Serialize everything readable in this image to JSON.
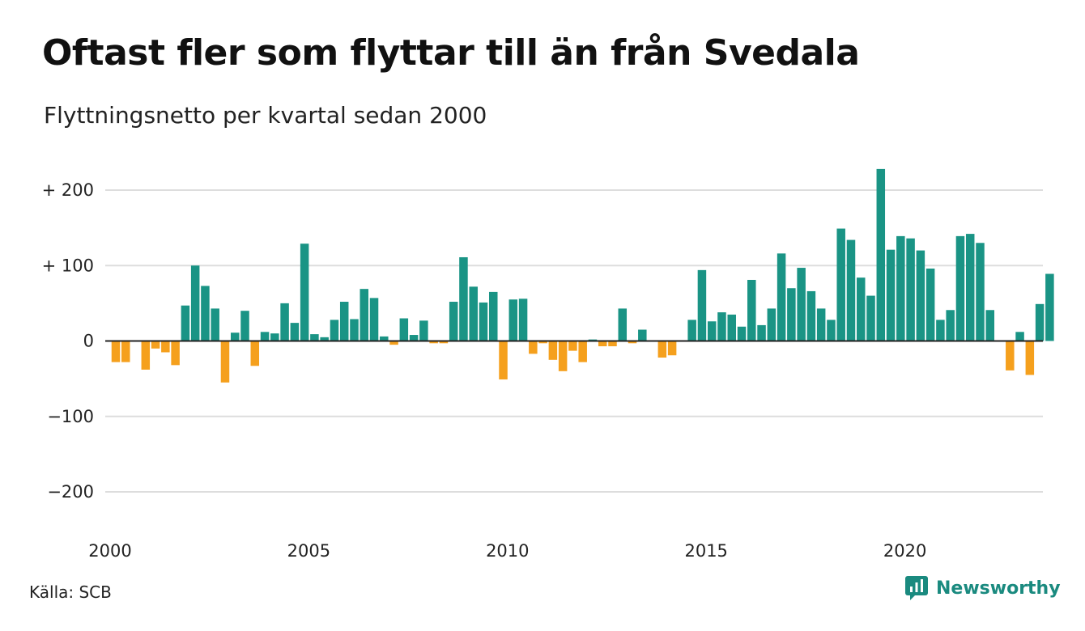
{
  "title": "Oftast fler som flyttar till än från Svedala",
  "subtitle": "Flyttningsnetto per kvartal sedan 2000",
  "source": "Källa: SCB",
  "brand": "Newsworthy",
  "brand_icon": "newsworthy-logo-icon",
  "colors": {
    "positive": "#1a9485",
    "negative": "#f5a01d",
    "grid": "#dddddd",
    "zero": "#222222",
    "brand": "#1a8a7f"
  },
  "chart_data": {
    "type": "bar",
    "title": "Oftast fler som flyttar till än från Svedala",
    "subtitle": "Flyttningsnetto per kvartal sedan 2000",
    "xlabel": "",
    "ylabel": "",
    "x_start": "2000 Q1",
    "x_end": "2023 Q3",
    "ylim": [
      -250,
      250
    ],
    "y_ticks": [
      200,
      100,
      0,
      -100,
      -200
    ],
    "y_tick_labels": [
      "+ 200",
      "+ 100",
      "0",
      "−100",
      "−200"
    ],
    "x_tick_labels": [
      "2000",
      "2005",
      "2010",
      "2015",
      "2020"
    ],
    "grid": true,
    "values": [
      -28,
      -28,
      0,
      -38,
      -10,
      -15,
      -32,
      47,
      100,
      73,
      43,
      -55,
      11,
      40,
      -33,
      12,
      10,
      50,
      24,
      129,
      9,
      5,
      28,
      52,
      29,
      69,
      57,
      6,
      -5,
      30,
      8,
      27,
      -3,
      -3,
      52,
      111,
      72,
      51,
      65,
      -51,
      55,
      56,
      -17,
      -3,
      -25,
      -40,
      -13,
      -28,
      2,
      -7,
      -7,
      43,
      -3,
      15,
      0,
      -22,
      -19,
      0,
      28,
      94,
      26,
      38,
      35,
      19,
      81,
      21,
      43,
      116,
      70,
      97,
      66,
      43,
      28,
      149,
      134,
      84,
      60,
      228,
      121,
      139,
      136,
      120,
      96,
      28,
      41,
      139,
      142,
      130,
      41,
      0,
      -39,
      12,
      -45,
      49,
      89
    ]
  }
}
